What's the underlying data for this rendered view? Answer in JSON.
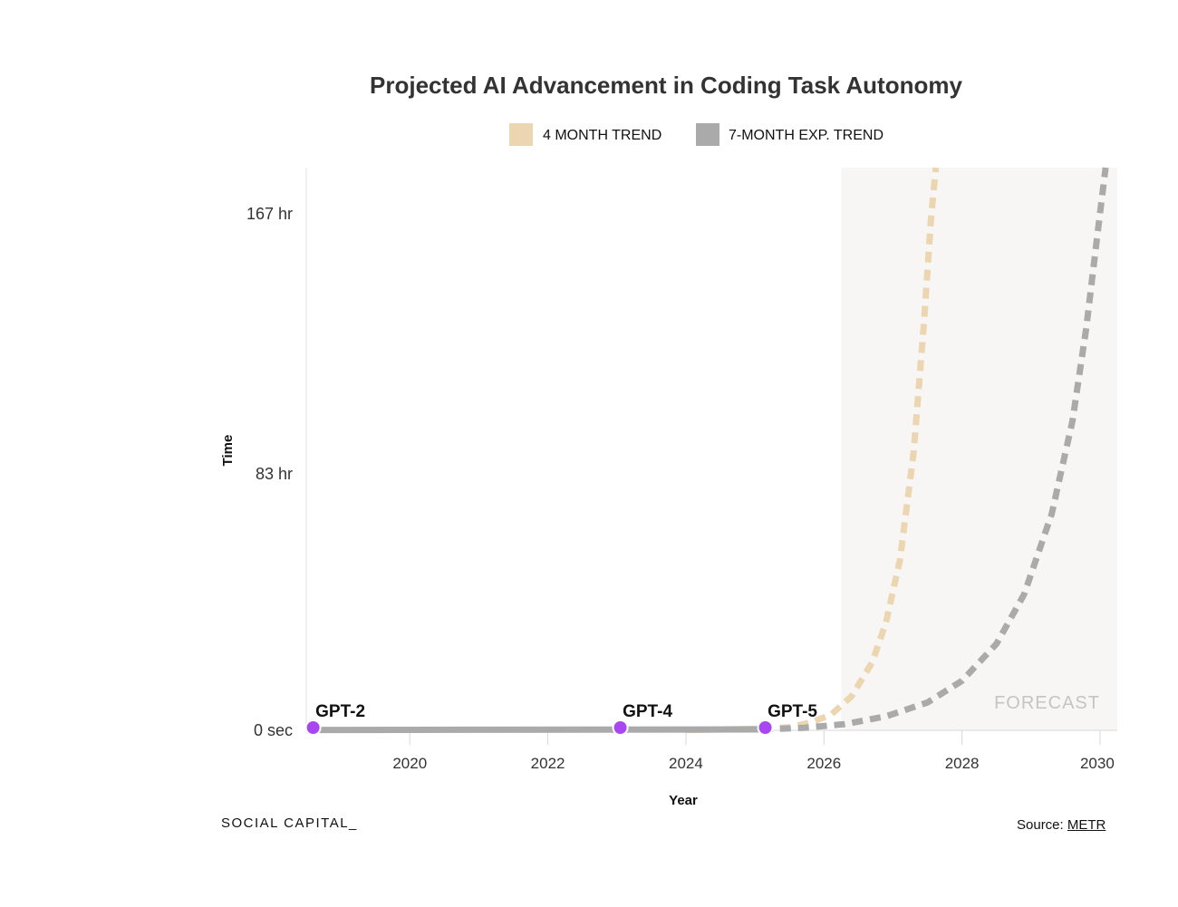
{
  "chart_data": {
    "type": "line",
    "title": "Projected AI Advancement in Coding Task Autonomy",
    "xlabel": "Year",
    "ylabel": "Time",
    "xlim": [
      2018.5,
      2030.25
    ],
    "ylim": [
      0,
      182
    ],
    "x_ticks": [
      2020,
      2022,
      2024,
      2026,
      2028,
      2030
    ],
    "x_tick_labels": [
      "2020",
      "2022",
      "2024",
      "2026",
      "2028",
      "2030"
    ],
    "y_ticks": [
      0,
      83,
      167
    ],
    "y_tick_labels": [
      "0 sec",
      "83 hr",
      "167 hr"
    ],
    "forecast_region": {
      "start": 2026.25,
      "end": 2030.25,
      "label": "FORECAST"
    },
    "series": [
      {
        "name": "4 MONTH TREND",
        "color": "#ecd5b1",
        "historical": {
          "x": [
            2024.0,
            2025.1
          ],
          "y": [
            0.1,
            0.5
          ]
        },
        "projection": {
          "x": [
            2025.1,
            2025.5,
            2025.8,
            2026.1,
            2026.4,
            2026.7,
            2026.9,
            2027.1,
            2027.3,
            2027.45,
            2027.55,
            2027.62
          ],
          "y": [
            0.5,
            1.0,
            2.5,
            5.0,
            11.0,
            22.0,
            35.0,
            55.0,
            90.0,
            132.0,
            165.0,
            182.0
          ]
        }
      },
      {
        "name": "7-MONTH EXP. TREND",
        "color": "#aaaaaa",
        "historical": {
          "x": [
            2018.6,
            2025.1
          ],
          "y": [
            0.1,
            0.3
          ]
        },
        "projection": {
          "x": [
            2025.1,
            2025.7,
            2026.3,
            2026.9,
            2027.5,
            2028.0,
            2028.5,
            2028.9,
            2029.3,
            2029.6,
            2029.8,
            2029.95,
            2030.08
          ],
          "y": [
            0.3,
            0.8,
            2.0,
            4.5,
            9.0,
            16.0,
            28.0,
            44.0,
            70.0,
            100.0,
            130.0,
            158.0,
            182.0
          ]
        }
      }
    ],
    "points": [
      {
        "label": "GPT-2",
        "x": 2018.6,
        "y": 0
      },
      {
        "label": "GPT-4",
        "x": 2023.05,
        "y": 0
      },
      {
        "label": "GPT-5",
        "x": 2025.15,
        "y": 0
      }
    ],
    "point_color": "#a846f2"
  },
  "legend": [
    {
      "label": "4 MONTH TREND",
      "color": "#ecd5b1"
    },
    {
      "label": "7-MONTH EXP. TREND",
      "color": "#aaaaaa"
    }
  ],
  "footer": {
    "brand": "SOCIAL CAPITAL_",
    "source_prefix": "Source:",
    "source_link": "METR"
  }
}
